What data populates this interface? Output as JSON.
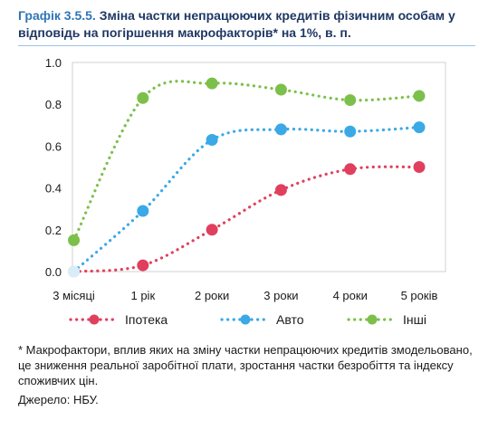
{
  "figure": {
    "number": "Графік 3.5.5.",
    "title": "Зміна частки непрацюючих кредитів фізичним особам у відповідь на погіршення макрофакторів* на 1%, в. п."
  },
  "chart_data": {
    "type": "line",
    "categories": [
      "3 місяці",
      "1 рік",
      "2 роки",
      "3 роки",
      "4 роки",
      "5 років"
    ],
    "ylim": [
      0,
      1.0
    ],
    "yticks": [
      "0.0",
      "0.2",
      "0.4",
      "0.6",
      "0.8",
      "1.0"
    ],
    "grid": false,
    "legend_position": "bottom",
    "line_style": "dotted",
    "series": [
      {
        "name": "Іпотека",
        "color": "#e0405e",
        "first_point_color": "#f2b8c6",
        "values": [
          0.0,
          0.03,
          0.2,
          0.39,
          0.49,
          0.5
        ]
      },
      {
        "name": "Авто",
        "color": "#3aa9e6",
        "first_point_color": "#d7edf9",
        "values": [
          0.0,
          0.29,
          0.63,
          0.68,
          0.67,
          0.69
        ]
      },
      {
        "name": "Інші",
        "color": "#7cc04b",
        "first_point_color": "#7cc04b",
        "values": [
          0.15,
          0.83,
          0.9,
          0.87,
          0.82,
          0.84
        ]
      }
    ]
  },
  "footnote": "* Макрофактори, вплив яких на зміну частки непрацюючих кредитів змодельовано, це зниження реальної заробітної плати, зростання частки безробіття та індексу споживчих цін.",
  "source": "Джерело: НБУ."
}
